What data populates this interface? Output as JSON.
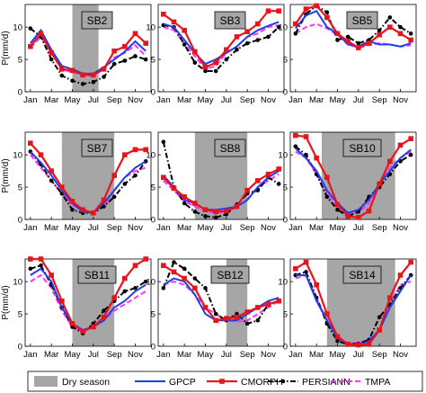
{
  "chart_data": {
    "type": "line",
    "x_tick_labels": [
      "Jan",
      "Mar",
      "May",
      "Jul",
      "Sep",
      "Nov"
    ],
    "y_ticks": [
      0,
      5,
      10
    ],
    "y_label": "P(mm/d)",
    "ylim": [
      0,
      13.5
    ],
    "months": [
      1,
      2,
      3,
      4,
      5,
      6,
      7,
      8,
      9,
      10,
      11,
      12
    ],
    "legend": [
      {
        "key": "dry",
        "label": "Dry season",
        "color": "#a6a6a6",
        "style": "patch"
      },
      {
        "key": "gpcp",
        "label": "GPCP",
        "color": "#1f3fe6",
        "style": "solid"
      },
      {
        "key": "cmorph",
        "label": "CMORPH",
        "color": "#e8141c",
        "style": "solid-square"
      },
      {
        "key": "persiann",
        "label": "PERSIANN",
        "color": "#000000",
        "style": "dashdot-dot"
      },
      {
        "key": "tmpa",
        "label": "TMPA",
        "color": "#ff33ff",
        "style": "dashed"
      }
    ],
    "panels": [
      {
        "label": "SB2",
        "dry": [
          5,
          7.5
        ],
        "gpcp": [
          7.5,
          9.5,
          6.5,
          4.0,
          3.5,
          2.8,
          2.8,
          3.8,
          5.0,
          6.2,
          7.8,
          6.3
        ],
        "cmorph": [
          7.0,
          9.0,
          6.0,
          3.5,
          3.3,
          2.6,
          2.6,
          3.5,
          6.3,
          7.0,
          9.0,
          7.5
        ],
        "persiann": [
          9.8,
          8.5,
          5.0,
          2.5,
          1.7,
          1.2,
          1.5,
          2.3,
          4.3,
          4.8,
          5.5,
          5.0
        ],
        "tmpa": [
          6.8,
          8.5,
          6.0,
          3.5,
          3.0,
          2.5,
          2.5,
          3.5,
          5.3,
          6.0,
          7.2,
          5.5
        ]
      },
      {
        "label": "SB3",
        "dry": null,
        "gpcp": [
          10.5,
          10.0,
          8.0,
          6.0,
          4.3,
          5.0,
          6.0,
          7.0,
          8.5,
          9.5,
          10.2,
          10.8
        ],
        "cmorph": [
          12.0,
          10.8,
          9.5,
          6.2,
          3.8,
          4.5,
          6.5,
          8.5,
          9.3,
          10.5,
          12.5,
          12.5
        ],
        "persiann": [
          10.3,
          10.0,
          7.3,
          4.5,
          3.2,
          3.2,
          5.0,
          6.5,
          7.5,
          8.0,
          8.5,
          10.0
        ],
        "tmpa": [
          10.0,
          9.5,
          7.5,
          5.5,
          3.5,
          4.0,
          6.0,
          7.0,
          8.5,
          9.0,
          10.0,
          10.3
        ]
      },
      {
        "label": "SB5",
        "dry": null,
        "gpcp": [
          9.8,
          11.8,
          12.5,
          10.0,
          9.0,
          7.3,
          7.0,
          7.8,
          7.3,
          7.3,
          7.0,
          7.5
        ],
        "cmorph": [
          10.5,
          12.8,
          13.3,
          11.5,
          9.0,
          7.8,
          6.8,
          7.5,
          8.8,
          10.0,
          9.0,
          8.0
        ],
        "persiann": [
          9.0,
          12.0,
          13.3,
          12.3,
          8.0,
          8.5,
          7.5,
          8.0,
          9.5,
          11.5,
          10.0,
          9.0
        ],
        "tmpa": [
          9.0,
          10.0,
          10.5,
          9.8,
          8.8,
          7.3,
          6.8,
          7.2,
          7.5,
          7.3,
          7.0,
          7.2
        ]
      },
      {
        "label": "SB7",
        "dry": [
          4,
          9
        ],
        "gpcp": [
          10.5,
          8.8,
          6.8,
          4.5,
          2.5,
          1.2,
          1.0,
          2.5,
          4.5,
          6.5,
          8.0,
          9.0
        ],
        "cmorph": [
          11.8,
          10.0,
          7.5,
          5.0,
          2.8,
          1.5,
          1.0,
          3.0,
          6.8,
          10.0,
          10.8,
          10.8
        ],
        "persiann": [
          10.5,
          8.5,
          6.0,
          4.0,
          1.5,
          1.0,
          1.0,
          2.0,
          3.5,
          5.5,
          6.8,
          9.0
        ],
        "tmpa": [
          10.0,
          8.0,
          6.0,
          4.0,
          2.3,
          1.3,
          1.0,
          2.0,
          4.5,
          6.5,
          7.5,
          8.0
        ]
      },
      {
        "label": "SB8",
        "dry": [
          4,
          9
        ],
        "gpcp": [
          6.8,
          5.0,
          3.0,
          2.5,
          1.5,
          1.5,
          1.7,
          2.0,
          3.0,
          5.0,
          6.5,
          7.5
        ],
        "cmorph": [
          6.5,
          4.8,
          3.5,
          2.5,
          1.5,
          1.2,
          1.3,
          2.0,
          4.5,
          6.0,
          7.0,
          7.8
        ],
        "persiann": [
          12.0,
          5.0,
          2.5,
          1.2,
          0.5,
          0.3,
          0.8,
          2.3,
          4.0,
          4.5,
          6.5,
          5.5
        ],
        "tmpa": [
          6.0,
          4.5,
          2.8,
          2.0,
          1.3,
          1.0,
          1.2,
          1.8,
          3.2,
          5.0,
          6.0,
          7.0
        ]
      },
      {
        "label": "SB10",
        "dry": [
          3.5,
          10.5
        ],
        "gpcp": [
          11.0,
          9.5,
          7.5,
          4.5,
          2.5,
          1.0,
          1.5,
          3.0,
          5.5,
          7.5,
          9.5,
          10.8
        ],
        "cmorph": [
          13.0,
          12.8,
          9.5,
          6.5,
          2.3,
          0.5,
          0.3,
          1.3,
          5.5,
          9.0,
          11.5,
          12.5
        ],
        "persiann": [
          11.3,
          10.0,
          7.0,
          3.5,
          1.5,
          0.5,
          1.2,
          3.5,
          5.0,
          7.0,
          9.0,
          10.0
        ],
        "tmpa": [
          10.5,
          9.5,
          7.0,
          4.0,
          2.0,
          1.0,
          1.0,
          2.5,
          5.5,
          8.0,
          9.5,
          10.5
        ]
      },
      {
        "label": "SB11",
        "dry": [
          5,
          9
        ],
        "gpcp": [
          11.0,
          12.0,
          10.0,
          6.0,
          3.5,
          2.5,
          3.0,
          4.0,
          6.0,
          7.0,
          8.5,
          9.5
        ],
        "cmorph": [
          13.5,
          13.5,
          11.0,
          7.0,
          3.5,
          2.3,
          3.0,
          4.5,
          7.5,
          10.5,
          12.5,
          13.5
        ],
        "persiann": [
          12.0,
          12.5,
          9.5,
          6.0,
          3.0,
          2.0,
          3.5,
          5.5,
          7.0,
          8.5,
          9.0,
          10.0
        ],
        "tmpa": [
          10.0,
          11.0,
          9.0,
          5.5,
          3.0,
          2.3,
          3.0,
          4.0,
          5.5,
          6.5,
          7.5,
          8.5
        ]
      },
      {
        "label": "SB12",
        "dry": [
          7,
          9
        ],
        "gpcp": [
          9.5,
          10.5,
          10.0,
          8.0,
          5.0,
          4.0,
          4.0,
          4.0,
          5.0,
          6.0,
          7.0,
          7.5
        ],
        "cmorph": [
          12.5,
          11.5,
          10.5,
          9.0,
          6.0,
          4.0,
          4.3,
          4.5,
          5.3,
          6.0,
          6.5,
          7.0
        ],
        "persiann": [
          9.0,
          13.0,
          12.0,
          10.5,
          9.0,
          5.0,
          4.0,
          5.0,
          3.5,
          4.0,
          6.5,
          7.0
        ],
        "tmpa": [
          9.5,
          10.0,
          9.5,
          8.0,
          6.0,
          5.0,
          4.0,
          3.8,
          4.0,
          5.0,
          6.0,
          7.0
        ]
      },
      {
        "label": "SB14",
        "dry": [
          4,
          10.5
        ],
        "gpcp": [
          11.0,
          11.0,
          7.0,
          4.0,
          1.3,
          0.3,
          0.2,
          0.8,
          2.5,
          6.0,
          8.5,
          11.0
        ],
        "cmorph": [
          12.0,
          13.0,
          9.5,
          5.0,
          1.5,
          0.3,
          0.2,
          0.3,
          2.5,
          7.5,
          11.0,
          13.0
        ],
        "persiann": [
          11.0,
          11.5,
          7.5,
          3.5,
          0.8,
          0.3,
          0.4,
          1.0,
          4.5,
          6.5,
          9.0,
          11.0
        ],
        "tmpa": [
          10.5,
          11.0,
          7.5,
          4.0,
          1.5,
          0.5,
          0.5,
          1.0,
          2.5,
          6.5,
          9.5,
          10.0
        ]
      }
    ]
  }
}
